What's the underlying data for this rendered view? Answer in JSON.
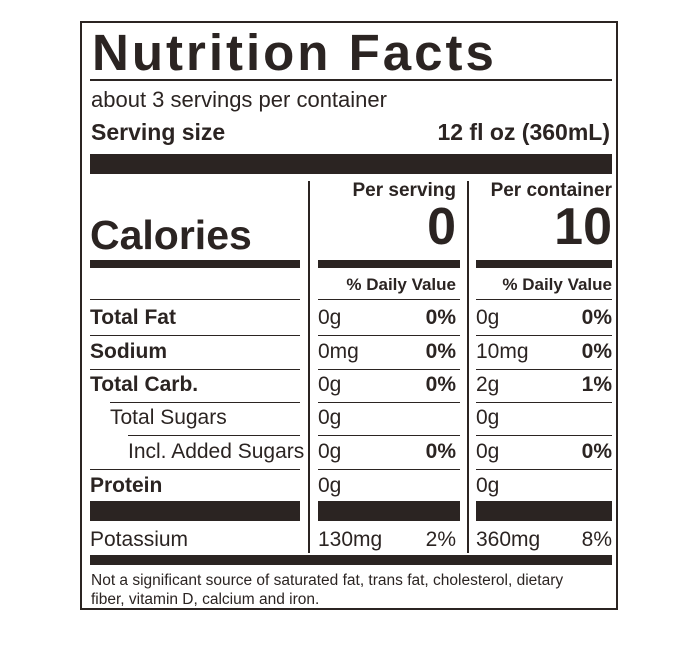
{
  "title": "Nutrition Facts",
  "servings": "about 3 servings per container",
  "serving_size": {
    "label": "Serving size",
    "value": "12 fl oz (360mL)"
  },
  "columns": [
    "Per serving",
    "Per container"
  ],
  "calories": {
    "label": "Calories",
    "values": [
      "0",
      "10"
    ]
  },
  "daily_value_header": "% Daily Value",
  "rows": [
    {
      "name": "Total Fat",
      "per_serving": "0g",
      "per_serving_dv": "0%",
      "per_container": "0g",
      "per_container_dv": "0%"
    },
    {
      "name": "Sodium",
      "per_serving": "0mg",
      "per_serving_dv": "0%",
      "per_container": "10mg",
      "per_container_dv": "0%"
    },
    {
      "name": "Total Carb.",
      "per_serving": "0g",
      "per_serving_dv": "0%",
      "per_container": "2g",
      "per_container_dv": "1%"
    },
    {
      "name": "Total Sugars",
      "per_serving": "0g",
      "per_container": "0g"
    },
    {
      "name": "Incl. Added Sugars",
      "per_serving": "0g",
      "per_serving_dv": "0%",
      "per_container": "0g",
      "per_container_dv": "0%"
    },
    {
      "name": "Protein",
      "per_serving": "0g",
      "per_container": "0g"
    },
    {
      "name": "Potassium",
      "per_serving": "130mg",
      "per_serving_dv": "2%",
      "per_container": "360mg",
      "per_container_dv": "8%"
    }
  ],
  "footnote": "Not a significant source of saturated fat, trans fat, cholesterol, dietary fiber, vitamin D, calcium and iron."
}
